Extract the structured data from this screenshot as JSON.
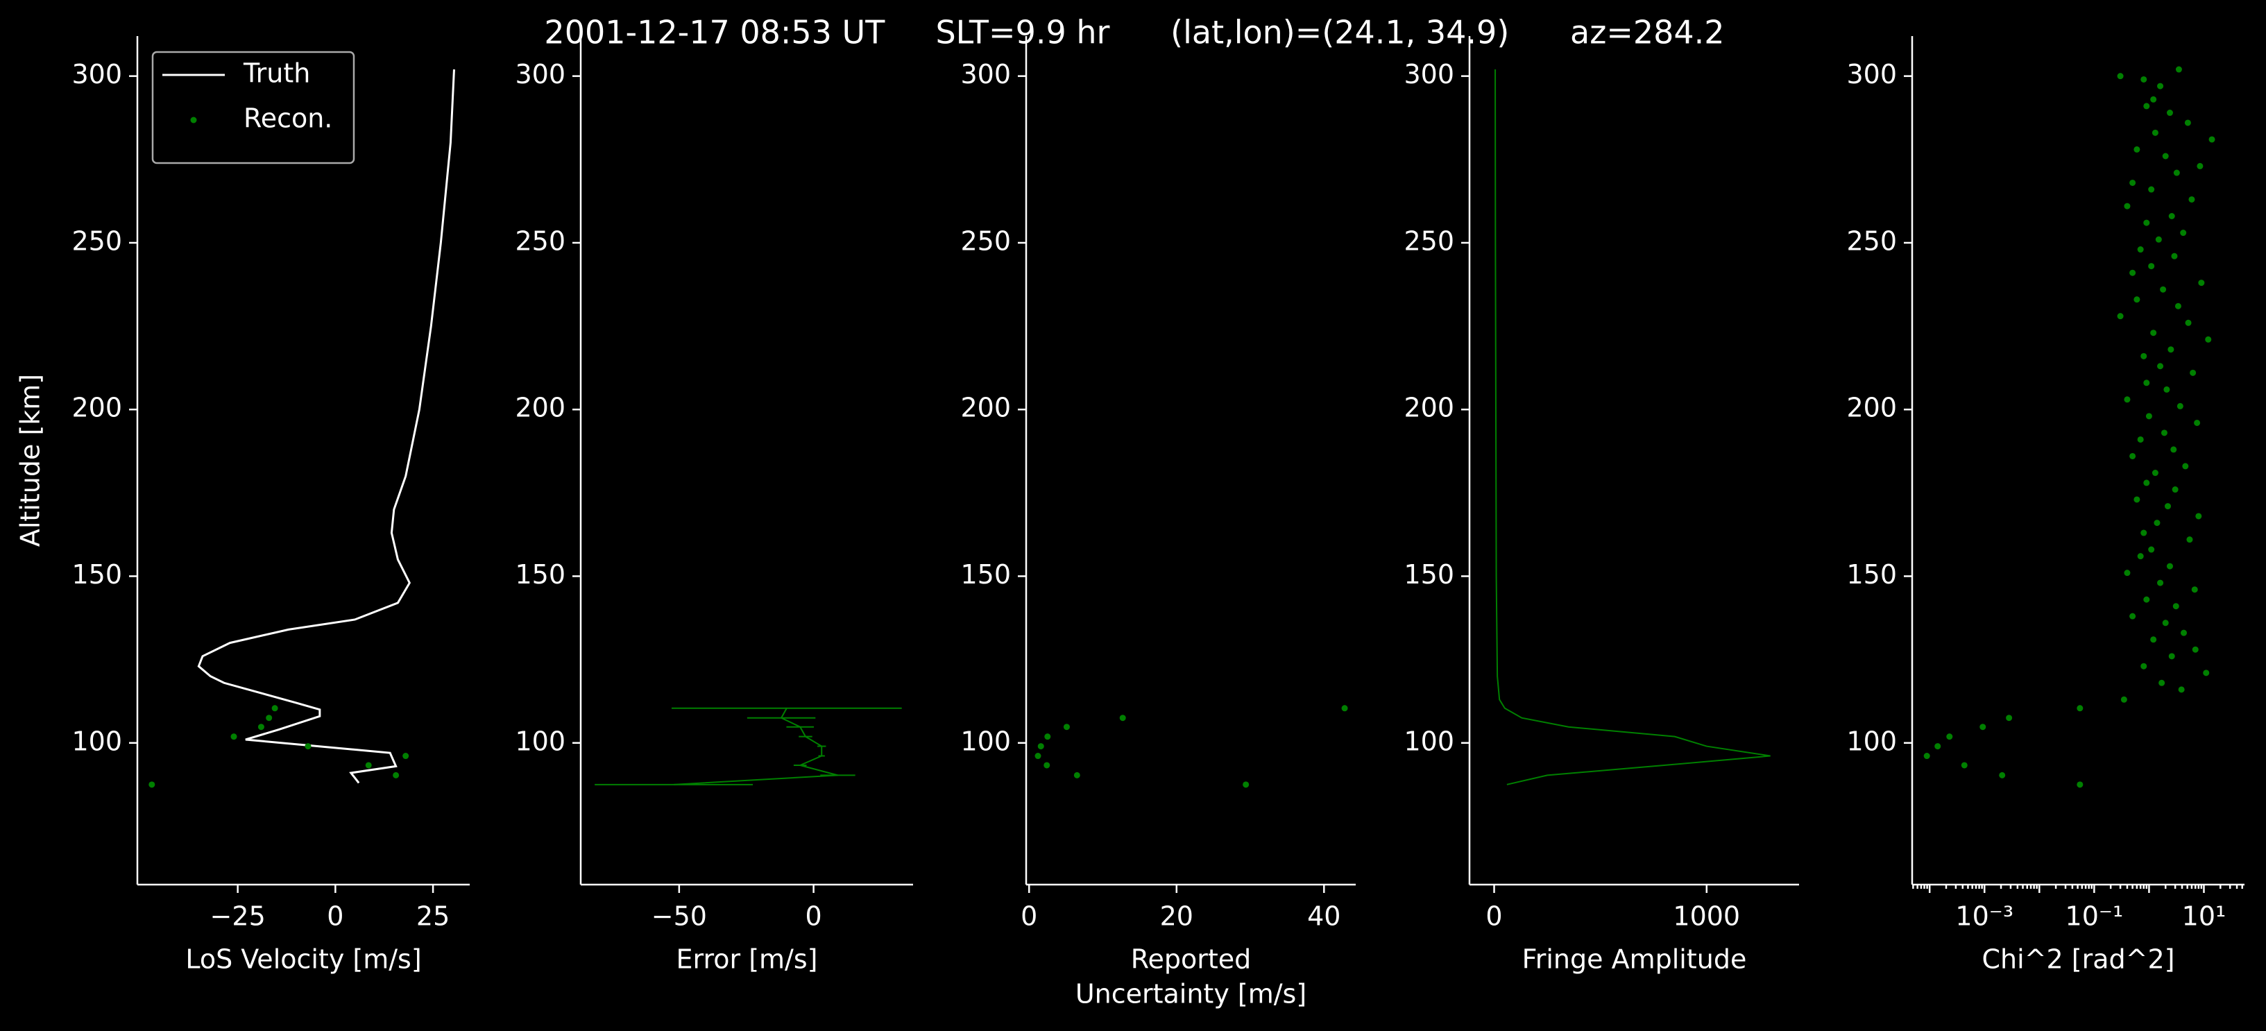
{
  "title": "2001-12-17 08:53 UT     SLT=9.9 hr      (lat,lon)=(24.1, 34.9)      az=284.2",
  "chart_data": [
    {
      "type": "line",
      "xlabel": [
        "LoS Velocity [m/s]"
      ],
      "ylabel": "Altitude [km]",
      "legend": "upper left",
      "xlim": [
        -50.7,
        34.4
      ],
      "xticks": [
        {
          "value": -25,
          "label": "−25"
        },
        0,
        25
      ],
      "ylim": [
        57.5,
        312
      ],
      "yticks": [
        100,
        150,
        200,
        250,
        300
      ],
      "series": [
        {
          "name": "Truth",
          "color": "#ffffff",
          "style": "line",
          "x": [
            30.4,
            29.5,
            27,
            24.5,
            21.5,
            18,
            15,
            14.4,
            16,
            19,
            16,
            5,
            -12,
            -27,
            -34,
            -35,
            -32,
            -28.5,
            -10,
            -4,
            -4,
            -14.5,
            -23,
            -4.4,
            14,
            15.5,
            4,
            6
          ],
          "y": [
            302,
            280,
            250,
            225,
            200,
            180,
            170,
            163,
            155,
            148,
            142,
            137,
            134,
            130,
            126,
            123,
            120,
            118,
            112,
            110,
            108,
            104,
            101,
            99,
            97,
            93,
            91,
            88
          ]
        },
        {
          "name": "Recon.",
          "color": "#008000",
          "style": "points",
          "x": [
            -15.5,
            -17,
            -19,
            -26,
            -7,
            18,
            8.5,
            15.5,
            -47
          ],
          "y": [
            110.4,
            107.5,
            104.8,
            101.9,
            99.0,
            96.1,
            93.3,
            90.3,
            87.5
          ]
        }
      ]
    },
    {
      "type": "errorbar",
      "xlabel": [
        "Error [m/s]"
      ],
      "xlim": [
        -86.6,
        37
      ],
      "xticks": [
        {
          "value": -50,
          "label": "−50"
        },
        0
      ],
      "ylim": [
        57.5,
        312
      ],
      "yticks": [
        100,
        150,
        200,
        250,
        300
      ],
      "series": [
        {
          "color": "#008000",
          "x": [
            -10,
            -12,
            -5,
            -3,
            3,
            3,
            -5,
            9,
            -52
          ],
          "xerr": [
            42.8,
            12.7,
            5.1,
            2.5,
            1.6,
            1.2,
            2.4,
            6.5,
            29.4
          ],
          "y": [
            110.4,
            107.5,
            104.8,
            101.9,
            99.0,
            96.1,
            93.3,
            90.3,
            87.5
          ]
        }
      ]
    },
    {
      "type": "scatter",
      "xlabel": [
        "Reported",
        "Uncertainty [m/s]"
      ],
      "xlim": [
        -0.4,
        44.3
      ],
      "xticks": [
        0,
        20,
        40
      ],
      "ylim": [
        57.5,
        312
      ],
      "yticks": [
        100,
        150,
        200,
        250,
        300
      ],
      "series": [
        {
          "color": "#008000",
          "x": [
            42.8,
            12.7,
            5.1,
            2.5,
            1.6,
            1.2,
            2.4,
            6.5,
            29.4
          ],
          "y": [
            110.4,
            107.5,
            104.8,
            101.9,
            99.0,
            96.1,
            93.3,
            90.3,
            87.5
          ]
        }
      ]
    },
    {
      "type": "line",
      "xlabel": [
        "Fringe Amplitude"
      ],
      "xlim": [
        -116,
        1435
      ],
      "xticks": [
        0,
        1000
      ],
      "ylim": [
        57.5,
        312
      ],
      "yticks": [
        100,
        150,
        200,
        250,
        300
      ],
      "series": [
        {
          "color": "#008000",
          "style": "line",
          "width": 1,
          "x": [
            5,
            6,
            8,
            10,
            15,
            25,
            50,
            130,
            350,
            850,
            1000,
            1300,
            800,
            250,
            60
          ],
          "y": [
            302,
            250,
            200,
            150,
            120,
            113,
            110.4,
            107.5,
            104.8,
            101.9,
            99,
            96.1,
            93.3,
            90.3,
            87.5
          ]
        }
      ]
    },
    {
      "type": "scatter",
      "xlabel": [
        "Chi^2 [rad^2]"
      ],
      "xscale": "log",
      "minor_ticks": true,
      "xlim": [
        4.8e-05,
        55
      ],
      "xticks": [
        {
          "value": 0.001,
          "label": "10⁻³"
        },
        {
          "value": 0.1,
          "label": "10⁻¹"
        },
        {
          "value": 10,
          "label": "10¹"
        }
      ],
      "ylim": [
        57.5,
        312
      ],
      "yticks": [
        100,
        150,
        200,
        250,
        300
      ],
      "series": [
        {
          "color": "#008000",
          "x": [
            3.5,
            0.3,
            0.8,
            1.6,
            1.2,
            0.9,
            2.4,
            5.1,
            1.3,
            14,
            0.6,
            2.0,
            8.5,
            3.2,
            0.5,
            1.1,
            6.0,
            0.4,
            2.6,
            0.9,
            4.2,
            1.5,
            0.7,
            2.9,
            1.1,
            0.5,
            9.0,
            1.8,
            0.6,
            3.4,
            0.3,
            5.2,
            1.2,
            12,
            2.5,
            0.8,
            1.6,
            6.3,
            0.9,
            2.1,
            0.4,
            3.7,
            1.0,
            7.5,
            1.9,
            0.7,
            2.8,
            0.5,
            4.6,
            1.3,
            0.9,
            3.0,
            0.6,
            2.2,
            8.0,
            1.4,
            0.8,
            5.5,
            1.1,
            0.7,
            2.4,
            0.4,
            1.6,
            6.8,
            0.9,
            3.1,
            0.5,
            2.0,
            4.3,
            1.2,
            7.0,
            2.6,
            0.8,
            11,
            1.7,
            3.9,
            0.35,
            0.055,
            0.0028,
            0.00093,
            0.00023,
            0.00014,
            8.9e-05,
            0.00043,
            0.0021,
            0.055
          ],
          "y": [
            302,
            300,
            299,
            297,
            293,
            291,
            289,
            286,
            283,
            281,
            278,
            276,
            273,
            271,
            268,
            266,
            263,
            261,
            258,
            256,
            253,
            251,
            248,
            246,
            243,
            241,
            238,
            236,
            233,
            231,
            228,
            226,
            223,
            221,
            218,
            216,
            213,
            211,
            208,
            206,
            203,
            201,
            198,
            196,
            193,
            191,
            188,
            186,
            183,
            181,
            178,
            176,
            173,
            171,
            168,
            166,
            163,
            161,
            158,
            156,
            153,
            151,
            148,
            146,
            143,
            141,
            138,
            136,
            133,
            131,
            128,
            126,
            123,
            121,
            118,
            116,
            113,
            110.4,
            107.5,
            104.8,
            101.9,
            99.0,
            96.1,
            93.3,
            90.3,
            87.5
          ]
        }
      ]
    }
  ]
}
